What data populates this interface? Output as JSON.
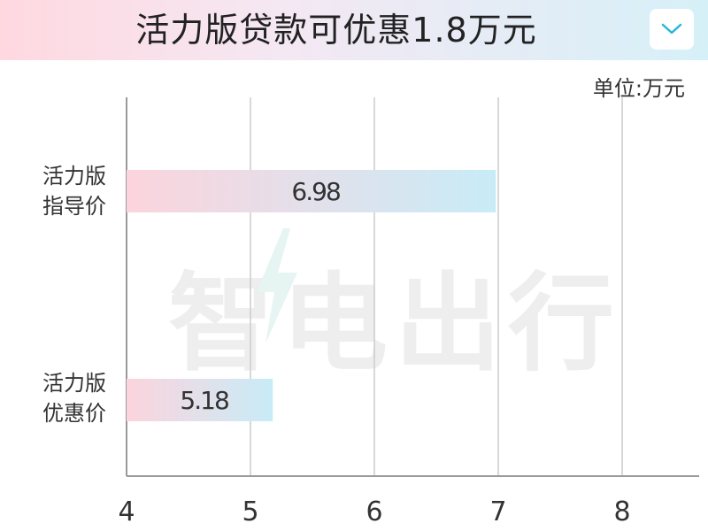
{
  "header": {
    "title": "活力版贷款可优惠1.8万元",
    "dropdown_icon": "chevron-down-icon"
  },
  "unit_label": "单位:万元",
  "watermark": "智电出行",
  "categories": [
    {
      "line1": "活力版",
      "line2": "指导价"
    },
    {
      "line1": "活力版",
      "line2": "优惠价"
    }
  ],
  "chart_data": {
    "type": "bar",
    "orientation": "horizontal",
    "categories": [
      "活力版指导价",
      "活力版优惠价"
    ],
    "values": [
      6.98,
      5.18
    ],
    "value_labels": [
      "6.98",
      "5.18"
    ],
    "xlim": [
      4,
      8.6
    ],
    "xticks": [
      4,
      5,
      6,
      7,
      8
    ],
    "tick_labels": [
      "4",
      "5",
      "6",
      "7",
      "8"
    ],
    "unit": "单位:万元",
    "grid": true,
    "colors": {
      "bar_start": "#fcd4dd",
      "bar_end": "#c8ecf7",
      "grid": "#cccccc",
      "axis": "#999999"
    }
  }
}
